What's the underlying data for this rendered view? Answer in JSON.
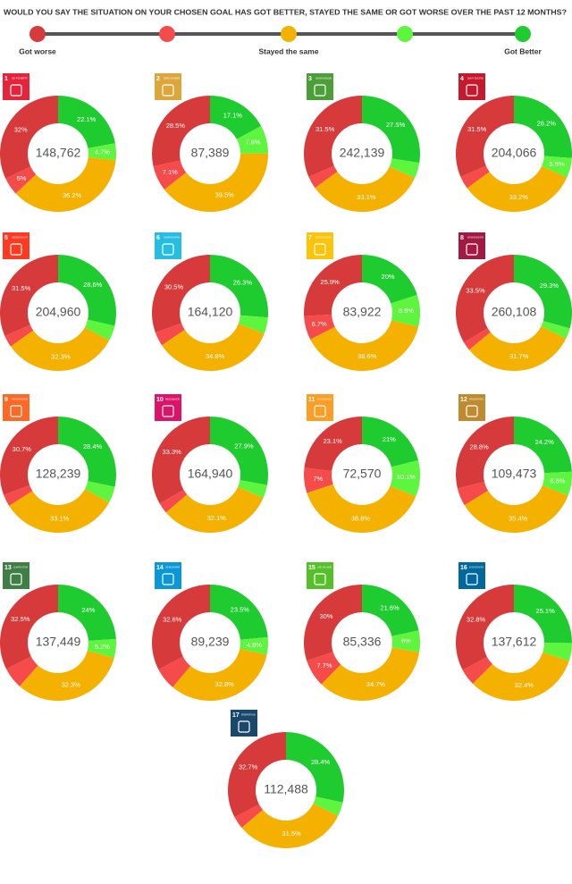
{
  "header": {
    "title": "WOULD YOU SAY THE SITUATION ON YOUR CHOSEN GOAL HAS GOT BETTER, STAYED THE SAME OR GOT WORSE OVER THE PAST 12 MONTHS?",
    "scale_colors": [
      "#d63a3a",
      "#f54b4b",
      "#f5b100",
      "#5ef53f",
      "#1fcc2f"
    ],
    "scale_labels": [
      "Got worse",
      "Stayed the same",
      "Got Better"
    ]
  },
  "segment_colors": [
    "#1fcc2f",
    "#5ef53f",
    "#f5b100",
    "#f54b4b",
    "#d63a3a"
  ],
  "chart_data": [
    {
      "type": "pie",
      "goal": "1",
      "goal_title": "NO POVERTY",
      "icon_color": "#e5243b",
      "total": "148,762",
      "values": [
        22.1,
        4.7,
        36.2,
        5,
        32
      ],
      "value_labels": [
        "22.1%",
        "4.7%",
        "36.2%",
        "5%",
        "32%"
      ]
    },
    {
      "type": "pie",
      "goal": "2",
      "goal_title": "ZERO HUNGER",
      "icon_color": "#dda63a",
      "total": "87,389",
      "values": [
        17.1,
        7.8,
        39.5,
        7.1,
        28.5
      ],
      "value_labels": [
        "17.1%",
        "7.8%",
        "39.5%",
        "7.1%",
        "28.5%"
      ]
    },
    {
      "type": "pie",
      "goal": "3",
      "goal_title": "GOOD HEALTH AND WELL-BEING",
      "icon_color": "#4c9f38",
      "total": "242,139",
      "values": [
        27.5,
        4.4,
        33.1,
        3.5,
        31.5
      ],
      "value_labels": [
        "27.5%",
        null,
        "33.1%",
        null,
        "31.5%"
      ]
    },
    {
      "type": "pie",
      "goal": "4",
      "goal_title": "QUALITY EDUCATION",
      "icon_color": "#c5192d",
      "total": "204,066",
      "values": [
        26.2,
        5.5,
        33.2,
        3.6,
        31.5
      ],
      "value_labels": [
        "26.2%",
        "5.5%",
        "33.2%",
        null,
        "31.5%"
      ]
    },
    {
      "type": "pie",
      "goal": "5",
      "goal_title": "GENDER EQUALITY",
      "icon_color": "#ff3a21",
      "total": "204,960",
      "values": [
        28.6,
        4.3,
        32.3,
        3.3,
        31.5
      ],
      "value_labels": [
        "28.6%",
        null,
        "32.3%",
        null,
        "31.5%"
      ]
    },
    {
      "type": "pie",
      "goal": "6",
      "goal_title": "CLEAN WATER AND SANITATION",
      "icon_color": "#26bde2",
      "total": "164,120",
      "values": [
        26.3,
        4.5,
        34.8,
        3.9,
        30.5
      ],
      "value_labels": [
        "26.3%",
        null,
        "34.8%",
        null,
        "30.5%"
      ]
    },
    {
      "type": "pie",
      "goal": "7",
      "goal_title": "AFFORDABLE AND CLEAN ENERGY",
      "icon_color": "#fcc30b",
      "total": "83,922",
      "values": [
        20,
        8.9,
        38.6,
        6.7,
        25.9
      ],
      "value_labels": [
        "20%",
        "8.9%",
        "38.6%",
        "6.7%",
        "25.9%"
      ]
    },
    {
      "type": "pie",
      "goal": "8",
      "goal_title": "DECENT WORK AND ECONOMIC GROWTH",
      "icon_color": "#a21942",
      "total": "260,108",
      "values": [
        29.3,
        3,
        31.7,
        2.5,
        33.5
      ],
      "value_labels": [
        "29.3%",
        null,
        "31.7%",
        null,
        "33.5%"
      ]
    },
    {
      "type": "pie",
      "goal": "9",
      "goal_title": "INDUSTRY, INNOVATION AND INFRASTRUCTURE",
      "icon_color": "#fd6925",
      "total": "128,239",
      "values": [
        28.4,
        4.5,
        33.1,
        3.3,
        30.7
      ],
      "value_labels": [
        "28.4%",
        null,
        "33.1%",
        null,
        "30.7%"
      ]
    },
    {
      "type": "pie",
      "goal": "10",
      "goal_title": "REDUCED INEQUALITIES",
      "icon_color": "#dd1367",
      "total": "164,940",
      "values": [
        27.9,
        3.7,
        32.1,
        3,
        33.3
      ],
      "value_labels": [
        "27.9%",
        null,
        "32.1%",
        null,
        "33.3%"
      ]
    },
    {
      "type": "pie",
      "goal": "11",
      "goal_title": "SUSTAINABLE CITIES AND COMMUNITIES",
      "icon_color": "#fd9d24",
      "total": "72,570",
      "values": [
        21,
        10.1,
        38.8,
        7,
        23.1
      ],
      "value_labels": [
        "21%",
        "10.1%",
        "38.8%",
        "7%",
        "23.1%"
      ]
    },
    {
      "type": "pie",
      "goal": "12",
      "goal_title": "RESPONSIBLE CONSUMPTION AND PRODUCTION",
      "icon_color": "#bf8b2e",
      "total": "109,473",
      "values": [
        24.2,
        6.6,
        35.4,
        5,
        28.8
      ],
      "value_labels": [
        "24.2%",
        "6.6%",
        "35.4%",
        null,
        "28.8%"
      ]
    },
    {
      "type": "pie",
      "goal": "13",
      "goal_title": "CLIMATE ACTION",
      "icon_color": "#3f7e44",
      "total": "137,449",
      "values": [
        24,
        5.2,
        32.3,
        6,
        32.5
      ],
      "value_labels": [
        "24%",
        "5.2%",
        "32.3%",
        null,
        "32.5%"
      ]
    },
    {
      "type": "pie",
      "goal": "14",
      "goal_title": "LIFE BELOW WATER",
      "icon_color": "#0a97d9",
      "total": "89,239",
      "values": [
        23.5,
        4.8,
        32.8,
        6.3,
        32.6
      ],
      "value_labels": [
        "23.5%",
        "4.8%",
        "32.8%",
        null,
        "32.6%"
      ]
    },
    {
      "type": "pie",
      "goal": "15",
      "goal_title": "LIFE ON LAND",
      "icon_color": "#56c02b",
      "total": "85,336",
      "values": [
        21.6,
        6,
        34.7,
        7.7,
        30
      ],
      "value_labels": [
        "21.6%",
        "6%",
        "34.7%",
        "7.7%",
        "30%"
      ]
    },
    {
      "type": "pie",
      "goal": "16",
      "goal_title": "PEACE, JUSTICE AND STRONG INSTITUTIONS",
      "icon_color": "#00689d",
      "total": "137,612",
      "values": [
        25.1,
        5,
        32.4,
        4.7,
        32.8
      ],
      "value_labels": [
        "25.1%",
        null,
        "32.4%",
        null,
        "32.8%"
      ]
    },
    {
      "type": "pie",
      "goal": "17",
      "goal_title": "PARTNERSHIPS FOR THE GOALS",
      "icon_color": "#19486a",
      "total": "112,488",
      "values": [
        28.4,
        3.9,
        31.5,
        3.5,
        32.7
      ],
      "value_labels": [
        "28.4%",
        null,
        "31.5%",
        null,
        "32.7%"
      ]
    }
  ]
}
